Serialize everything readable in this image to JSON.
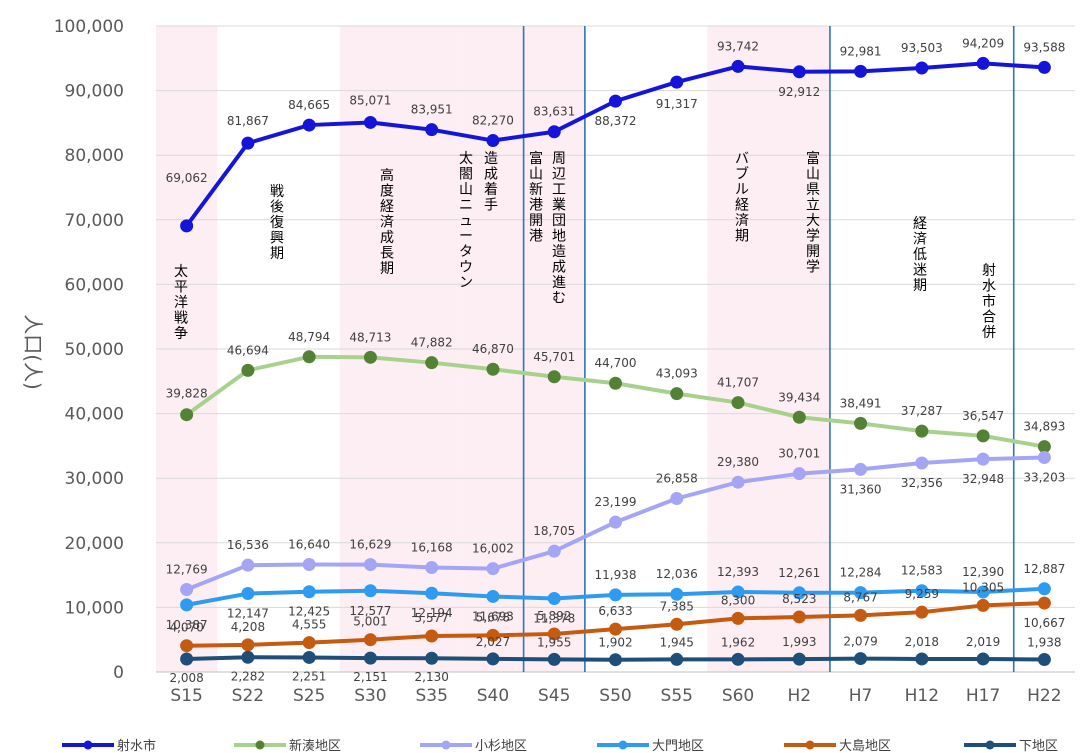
{
  "chart_data": {
    "type": "line",
    "ylabel": "人口(人)",
    "ylim": [
      0,
      100000
    ],
    "yticks": [
      "0",
      "10,000",
      "20,000",
      "30,000",
      "40,000",
      "50,000",
      "60,000",
      "70,000",
      "80,000",
      "90,000",
      "100,000"
    ],
    "categories": [
      "S15",
      "S22",
      "S25",
      "S30",
      "S35",
      "S40",
      "S45",
      "S50",
      "S55",
      "S60",
      "H2",
      "H7",
      "H12",
      "H17",
      "H22"
    ],
    "grid": "horizontal",
    "legend": "bottom",
    "series": [
      {
        "name": "射水市",
        "color": "#1515d9",
        "values": [
          69062,
          81867,
          84665,
          85071,
          83951,
          82270,
          83631,
          88372,
          91317,
          93742,
          92912,
          92981,
          93503,
          94209,
          93588
        ],
        "labels": [
          "69,062",
          "81,867",
          "84,665",
          "85,071",
          "83,951",
          "82,270",
          "83,631",
          "88,372",
          "91,317",
          "93,742",
          "92,912",
          "92,981",
          "93,503",
          "94,209",
          "93,588"
        ]
      },
      {
        "name": "新湊地区",
        "color": "#a9d18e",
        "marker": "#548235",
        "values": [
          39828,
          46694,
          48794,
          48713,
          47882,
          46870,
          45701,
          44700,
          43093,
          41707,
          39434,
          38491,
          37287,
          36547,
          34893
        ],
        "labels": [
          "39,828",
          "46,694",
          "48,794",
          "48,713",
          "47,882",
          "46,870",
          "45,701",
          "44,700",
          "43,093",
          "41,707",
          "39,434",
          "38,491",
          "37,287",
          "36,547",
          "34,893"
        ]
      },
      {
        "name": "小杉地区",
        "color": "#a5a5f5",
        "values": [
          12769,
          16536,
          16640,
          16629,
          16168,
          16002,
          18705,
          23199,
          26858,
          29380,
          30701,
          31360,
          32356,
          32948,
          33203
        ],
        "labels": [
          "12,769",
          "16,536",
          "16,640",
          "16,629",
          "16,168",
          "16,002",
          "18,705",
          "23,199",
          "26,858",
          "29,380",
          "30,701",
          "31,360",
          "32,356",
          "32,948",
          "33,203"
        ]
      },
      {
        "name": "大門地区",
        "color": "#2e9bf0",
        "values": [
          10387,
          12147,
          12425,
          12577,
          12194,
          11693,
          11378,
          11938,
          12036,
          12393,
          12261,
          12284,
          12583,
          12390,
          12887
        ],
        "labels": [
          "10,387",
          "12,147",
          "12,425",
          "12,577",
          "12,194",
          "11,693",
          "11,378",
          "11,938",
          "12,036",
          "12,393",
          "12,261",
          "12,284",
          "12,583",
          "12,390",
          "12,887"
        ]
      },
      {
        "name": "大島地区",
        "color": "#c55a11",
        "values": [
          4070,
          4208,
          4555,
          5001,
          5577,
          5678,
          5892,
          6633,
          7385,
          8300,
          8523,
          8767,
          9259,
          10305,
          10667
        ],
        "labels": [
          "4,070",
          "4,208",
          "4,555",
          "5,001",
          "5,577",
          "5,678",
          "5,892",
          "6,633",
          "7,385",
          "8,300",
          "8,523",
          "8,767",
          "9,259",
          "10,305",
          "10,667"
        ]
      },
      {
        "name": "下地区",
        "color": "#1f4e79",
        "values": [
          2008,
          2282,
          2251,
          2151,
          2130,
          2027,
          1955,
          1902,
          1945,
          1962,
          1993,
          2079,
          2018,
          2019,
          1938
        ],
        "labels": [
          "2,008",
          "2,282",
          "2,251",
          "2,151",
          "2,130",
          "2,027",
          "1,955",
          "1,902",
          "1,945",
          "1,962",
          "1,993",
          "2,079",
          "2,018",
          "2,019",
          "1,938"
        ]
      }
    ],
    "shaded_bands": [
      {
        "from": "S15",
        "to": "S15"
      },
      {
        "from": "S30",
        "to": "S35"
      },
      {
        "from": "S40",
        "to": "S45"
      },
      {
        "from": "S60",
        "to": "H2"
      }
    ],
    "vertical_lines": [
      "S40",
      "S45",
      "H2",
      "H17"
    ],
    "annotations": [
      {
        "text": "太平洋戦争",
        "at": "S15"
      },
      {
        "text": "戦後復興期",
        "at": "S22"
      },
      {
        "text": "高度経済成長期",
        "at": "S30"
      },
      {
        "text": "太閤山ニュータウン",
        "at": "S35"
      },
      {
        "text": "造成着手",
        "at": "S40"
      },
      {
        "text": "富山新港開港",
        "at": "S45"
      },
      {
        "text": "周辺工業団地造成進む",
        "at": "S45"
      },
      {
        "text": "バブル経済期",
        "at": "S60"
      },
      {
        "text": "富山県立大学開学",
        "at": "H2"
      },
      {
        "text": "経済低迷期",
        "at": "H12"
      },
      {
        "text": "射水市合併",
        "at": "H17"
      }
    ]
  }
}
